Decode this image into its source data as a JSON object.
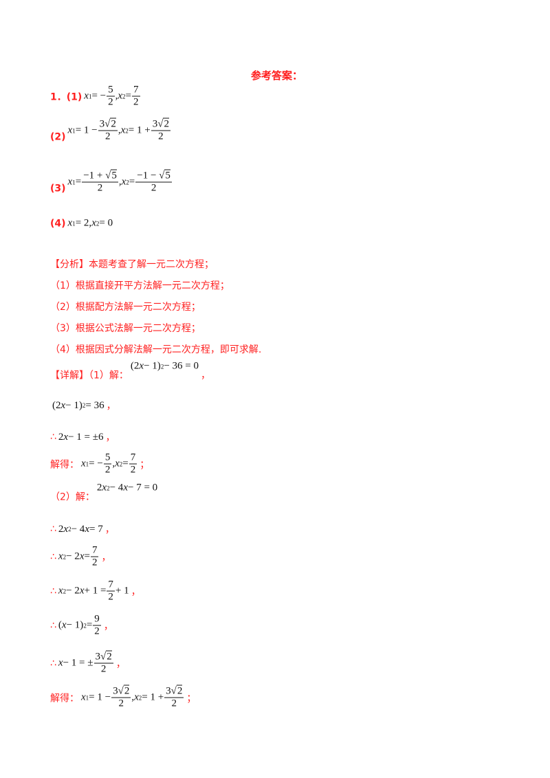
{
  "title": "参考答案：",
  "answers": [
    {
      "label": "1．(1)",
      "math": [
        {
          "i": "x"
        },
        {
          "sub": "1"
        },
        {
          "t": " = −"
        },
        {
          "f": [
            [
              {
                "t": "5"
              }
            ],
            [
              {
                "t": "2"
              }
            ]
          ]
        },
        {
          "t": ", "
        },
        {
          "i": "x"
        },
        {
          "sub": "2"
        },
        {
          "t": " = "
        },
        {
          "f": [
            [
              {
                "t": "7"
              }
            ],
            [
              {
                "t": "2"
              }
            ]
          ]
        }
      ]
    },
    {
      "label": "(2)",
      "math": [
        {
          "i": "x"
        },
        {
          "sub": "1"
        },
        {
          "t": " = 1 − "
        },
        {
          "f": [
            [
              {
                "t": "3"
              },
              {
                "sqrt": "2"
              }
            ],
            [
              {
                "t": "2"
              }
            ]
          ]
        },
        {
          "t": ", "
        },
        {
          "i": "x"
        },
        {
          "sub": "2"
        },
        {
          "t": " = 1 + "
        },
        {
          "f": [
            [
              {
                "t": "3"
              },
              {
                "sqrt": "2"
              }
            ],
            [
              {
                "t": "2"
              }
            ]
          ]
        }
      ]
    },
    {
      "label": "(3)",
      "math": [
        {
          "i": "x"
        },
        {
          "sub": "1"
        },
        {
          "t": " = "
        },
        {
          "f": [
            [
              {
                "t": "−1 + "
              },
              {
                "sqrt": "5"
              }
            ],
            [
              {
                "t": "2"
              }
            ]
          ]
        },
        {
          "t": ", "
        },
        {
          "i": "x"
        },
        {
          "sub": "2"
        },
        {
          "t": " = "
        },
        {
          "f": [
            [
              {
                "t": "−1 − "
              },
              {
                "sqrt": "5"
              }
            ],
            [
              {
                "t": "2"
              }
            ]
          ]
        }
      ]
    },
    {
      "label": "(4)",
      "math": [
        {
          "i": "x"
        },
        {
          "sub": "1"
        },
        {
          "t": " = 2, "
        },
        {
          "i": "x"
        },
        {
          "sub": "2"
        },
        {
          "t": " = 0"
        }
      ]
    }
  ],
  "analysis": {
    "heading": "【分析】本题考查了解一元二次方程；",
    "items": [
      "（1）根据直接开平方法解一元二次方程；",
      "（2）根据配方法解一元二次方程；",
      "（3）根据公式法解一元二次方程；",
      "（4）根据因式分解法解一元二次方程，即可求解."
    ]
  },
  "detail": [
    {
      "label": "【详解】（1）解：",
      "math": [
        {
          "t": "(2"
        },
        {
          "i": "x"
        },
        {
          "t": " − 1)"
        },
        {
          "sup": "2"
        },
        {
          "t": " − 36 = 0"
        }
      ],
      "end": "，",
      "raise": true
    },
    {
      "label": "",
      "math": [
        {
          "t": "(2"
        },
        {
          "i": "x"
        },
        {
          "t": " − 1)"
        },
        {
          "sup": "2"
        },
        {
          "t": " = 36"
        }
      ],
      "end": "，"
    },
    {
      "label": "∴",
      "math": [
        {
          "t": "2"
        },
        {
          "i": "x"
        },
        {
          "t": " − 1 = ±6"
        }
      ],
      "end": "，"
    },
    {
      "label": "解得：",
      "math": [
        {
          "i": "x"
        },
        {
          "sub": "1"
        },
        {
          "t": " = −"
        },
        {
          "f": [
            [
              {
                "t": "5"
              }
            ],
            [
              {
                "t": "2"
              }
            ]
          ]
        },
        {
          "t": ", "
        },
        {
          "i": "x"
        },
        {
          "sub": "2"
        },
        {
          "t": " = "
        },
        {
          "f": [
            [
              {
                "t": "7"
              }
            ],
            [
              {
                "t": "2"
              }
            ]
          ]
        }
      ],
      "end": "；"
    },
    {
      "label": "（2）解：",
      "math": [
        {
          "t": "2"
        },
        {
          "i": "x"
        },
        {
          "sup": "2"
        },
        {
          "t": " − 4"
        },
        {
          "i": "x"
        },
        {
          "t": " − 7 = 0"
        }
      ],
      "end": "",
      "raise": true
    },
    {
      "label": "∴",
      "math": [
        {
          "t": "2"
        },
        {
          "i": "x"
        },
        {
          "sup": "2"
        },
        {
          "t": " − 4"
        },
        {
          "i": "x"
        },
        {
          "t": " = 7"
        }
      ],
      "end": "，"
    },
    {
      "label": "∴",
      "math": [
        {
          "i": "x"
        },
        {
          "sup": "2"
        },
        {
          "t": " − 2"
        },
        {
          "i": "x"
        },
        {
          "t": " = "
        },
        {
          "f": [
            [
              {
                "t": "7"
              }
            ],
            [
              {
                "t": "2"
              }
            ]
          ]
        }
      ],
      "end": "，"
    },
    {
      "label": "∴",
      "math": [
        {
          "i": "x"
        },
        {
          "sup": "2"
        },
        {
          "t": " − 2"
        },
        {
          "i": "x"
        },
        {
          "t": " + 1 = "
        },
        {
          "f": [
            [
              {
                "t": "7"
              }
            ],
            [
              {
                "t": "2"
              }
            ]
          ]
        },
        {
          "t": " + 1"
        }
      ],
      "end": "，"
    },
    {
      "label": "∴",
      "math": [
        {
          "t": "("
        },
        {
          "i": "x"
        },
        {
          "t": " − 1)"
        },
        {
          "sup": "2"
        },
        {
          "t": " = "
        },
        {
          "f": [
            [
              {
                "t": "9"
              }
            ],
            [
              {
                "t": "2"
              }
            ]
          ]
        }
      ],
      "end": "，"
    },
    {
      "label": "∴",
      "math": [
        {
          "i": "x"
        },
        {
          "t": " − 1 = ±"
        },
        {
          "f": [
            [
              {
                "t": "3"
              },
              {
                "sqrt": "2"
              }
            ],
            [
              {
                "t": "2"
              }
            ]
          ]
        }
      ],
      "end": "，"
    },
    {
      "label": "解得：",
      "math": [
        {
          "i": "x"
        },
        {
          "sub": "1"
        },
        {
          "t": " = 1 − "
        },
        {
          "f": [
            [
              {
                "t": "3"
              },
              {
                "sqrt": "2"
              }
            ],
            [
              {
                "t": "2"
              }
            ]
          ]
        },
        {
          "t": ", "
        },
        {
          "i": "x"
        },
        {
          "sub": "2"
        },
        {
          "t": " = 1 + "
        },
        {
          "f": [
            [
              {
                "t": "3"
              },
              {
                "sqrt": "2"
              }
            ],
            [
              {
                "t": "2"
              }
            ]
          ]
        }
      ],
      "end": "；"
    }
  ]
}
